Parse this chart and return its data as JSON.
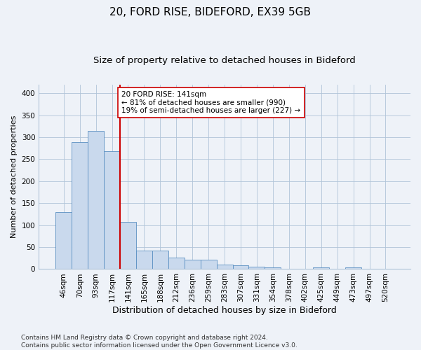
{
  "title1": "20, FORD RISE, BIDEFORD, EX39 5GB",
  "title2": "Size of property relative to detached houses in Bideford",
  "xlabel": "Distribution of detached houses by size in Bideford",
  "ylabel": "Number of detached properties",
  "categories": [
    "46sqm",
    "70sqm",
    "93sqm",
    "117sqm",
    "141sqm",
    "165sqm",
    "188sqm",
    "212sqm",
    "236sqm",
    "259sqm",
    "283sqm",
    "307sqm",
    "331sqm",
    "354sqm",
    "378sqm",
    "402sqm",
    "425sqm",
    "449sqm",
    "473sqm",
    "497sqm",
    "520sqm"
  ],
  "values": [
    130,
    288,
    314,
    268,
    108,
    42,
    42,
    26,
    22,
    21,
    10,
    8,
    6,
    4,
    0,
    0,
    4,
    0,
    4,
    0,
    0
  ],
  "bar_color": "#c9d9ed",
  "bar_edge_color": "#5a8fc2",
  "highlight_index": 4,
  "highlight_line_color": "#cc0000",
  "annotation_line1": "20 FORD RISE: 141sqm",
  "annotation_line2": "← 81% of detached houses are smaller (990)",
  "annotation_line3": "19% of semi-detached houses are larger (227) →",
  "annotation_box_color": "#ffffff",
  "annotation_box_edge_color": "#cc0000",
  "ylim": [
    0,
    420
  ],
  "yticks": [
    0,
    50,
    100,
    150,
    200,
    250,
    300,
    350,
    400
  ],
  "footer": "Contains HM Land Registry data © Crown copyright and database right 2024.\nContains public sector information licensed under the Open Government Licence v3.0.",
  "background_color": "#eef2f8",
  "plot_background_color": "#eef2f8",
  "title1_fontsize": 11,
  "title2_fontsize": 9.5,
  "xlabel_fontsize": 9,
  "ylabel_fontsize": 8,
  "footer_fontsize": 6.5,
  "tick_fontsize": 7.5,
  "annotation_fontsize": 7.5
}
